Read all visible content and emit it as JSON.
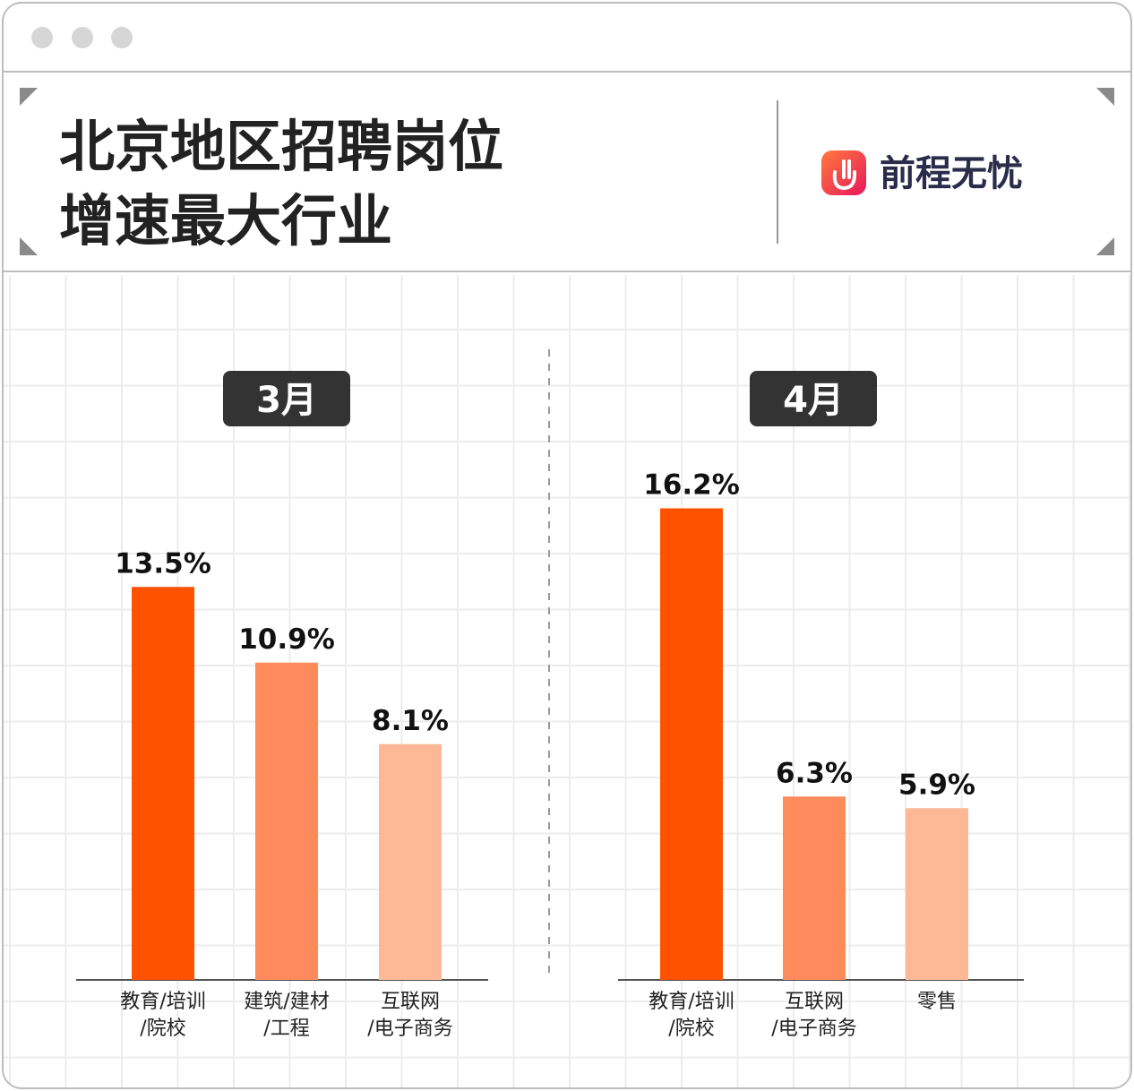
{
  "header": {
    "title_lines": [
      "北京地区招聘岗位",
      "增速最大行业"
    ],
    "brand": "前程无忧"
  },
  "chart_data": [
    {
      "type": "bar",
      "title": "3月",
      "categories": [
        "教育/培训\n/院校",
        "建筑/建材\n/工程",
        "互联网\n/电子商务"
      ],
      "values": [
        13.5,
        10.9,
        8.1
      ],
      "value_labels": [
        "13.5%",
        "10.9%",
        "8.1%"
      ],
      "colors": [
        "#ff5200",
        "#ff8a5c",
        "#ffb896"
      ]
    },
    {
      "type": "bar",
      "title": "4月",
      "categories": [
        "教育/培训\n/院校",
        "互联网\n/电子商务",
        "零售"
      ],
      "values": [
        16.2,
        6.3,
        5.9
      ],
      "value_labels": [
        "16.2%",
        "6.3%",
        "5.9%"
      ],
      "colors": [
        "#ff5200",
        "#ff8a5c",
        "#ffb896"
      ]
    }
  ]
}
